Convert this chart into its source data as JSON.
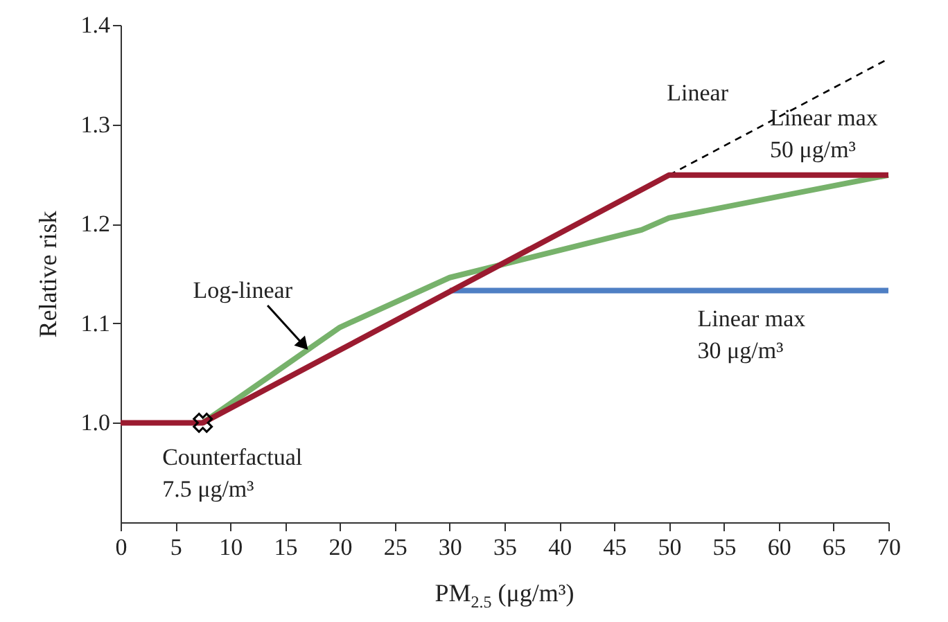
{
  "chart_data": {
    "type": "line",
    "xlabel": "PM$_{2.5}$ (μg/m³)",
    "ylabel": "Relative risk",
    "xlim": [
      0,
      70
    ],
    "xticks": [
      0,
      5,
      10,
      15,
      20,
      25,
      30,
      35,
      40,
      45,
      50,
      55,
      60,
      65,
      70
    ],
    "ylim": [
      0.9,
      1.4
    ],
    "yticks": [
      {
        "value": 1,
        "label": "1.0"
      },
      1.1,
      1.2,
      1.3,
      1.4
    ],
    "grid": false,
    "series": [
      {
        "color": "#000000",
        "line_style": "dashed",
        "x": [
          50,
          70
        ],
        "values": [
          1.249,
          1.366
        ]
      },
      {
        "color": "#4f7fc4",
        "x": [
          30,
          70
        ],
        "values": [
          1.133,
          1.133
        ]
      },
      {
        "color": "#77b26b",
        "x": [
          7.5,
          20,
          30,
          47.5,
          50,
          70
        ],
        "values": [
          1.0,
          1.096,
          1.146,
          1.194,
          1.206,
          1.249
        ]
      },
      {
        "color": "#9b1b30",
        "x": [
          0,
          7.5,
          50,
          70
        ],
        "values": [
          1.0,
          1.0,
          1.249,
          1.249
        ]
      },
      {
        "type": "scatter",
        "color": "#000000",
        "marker": "cross",
        "x": [
          7.5
        ],
        "values": [
          1.0
        ]
      }
    ],
    "annotations": [
      "Linear",
      "Linear max\n50 μg/m³",
      {
        "text": "Log-linear",
        "x": 17,
        "y": 1.073
      },
      "Linear max\n30 μg/m³",
      "Counterfactual\n 7.5 μg/m³"
    ]
  }
}
